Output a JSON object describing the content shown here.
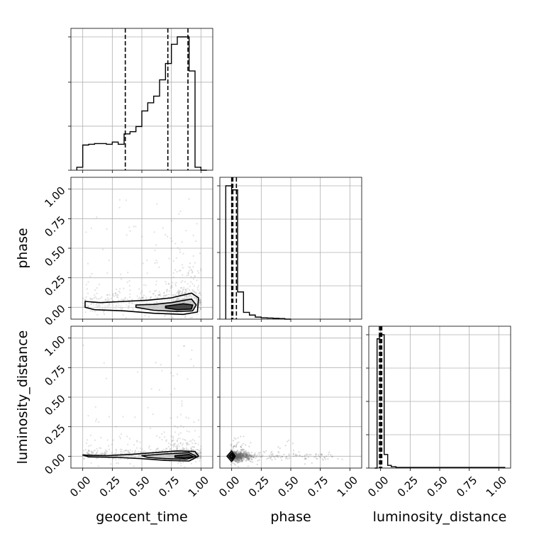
{
  "chart_data": {
    "type": "corner",
    "parameters": [
      "geocent_time",
      "phase",
      "luminosity_distance"
    ],
    "axis_range": [
      -0.1,
      1.1
    ],
    "tick_labels": [
      "0.00",
      "0.25",
      "0.50",
      "0.75",
      "1.00"
    ],
    "tick_values": [
      0,
      0.25,
      0.5,
      0.75,
      1.0
    ],
    "grid": true,
    "line_color": "#000000",
    "histograms": [
      {
        "parameter": "geocent_time",
        "bin_edges": [
          -0.05,
          0.0,
          0.05,
          0.1,
          0.15,
          0.2,
          0.25,
          0.3,
          0.35,
          0.4,
          0.45,
          0.5,
          0.55,
          0.6,
          0.65,
          0.7,
          0.75,
          0.8,
          0.85,
          0.9,
          0.95,
          1.0,
          1.05
        ],
        "counts": [
          0.02,
          0.17,
          0.175,
          0.18,
          0.18,
          0.175,
          0.19,
          0.175,
          0.245,
          0.26,
          0.295,
          0.4,
          0.455,
          0.5,
          0.61,
          0.72,
          0.85,
          0.9,
          0.9,
          0.67,
          0.02,
          0.0
        ],
        "quantiles": [
          0.36,
          0.72,
          0.89
        ],
        "ytick_values": [
          0,
          0.33,
          0.66,
          1.0
        ]
      },
      {
        "parameter": "phase",
        "bin_edges": [
          -0.05,
          0.0,
          0.05,
          0.1,
          0.15,
          0.2,
          0.25,
          0.3,
          0.35,
          0.4,
          0.45,
          0.5
        ],
        "counts": [
          0.98,
          0.95,
          0.2,
          0.05,
          0.03,
          0.015,
          0.01,
          0.008,
          0.006,
          0.004,
          0.0
        ],
        "quantiles": [
          0.0,
          0.01,
          0.04
        ],
        "ytick_values": [
          0,
          0.25,
          0.5,
          0.75,
          1.0
        ]
      },
      {
        "parameter": "luminosity_distance",
        "bin_edges": [
          -0.05,
          -0.03,
          -0.01,
          0.01,
          0.03,
          0.06,
          0.09,
          0.13,
          1.05
        ],
        "counts": [
          0.0,
          0.95,
          0.98,
          0.98,
          0.1,
          0.02,
          0.01,
          0.005
        ],
        "quantiles": [
          -0.01,
          0.0,
          0.01
        ],
        "ytick_values": [
          0,
          0.25,
          0.5,
          0.75,
          1.0
        ]
      }
    ],
    "scatter_panels": [
      {
        "x": "geocent_time",
        "y": "phase",
        "point_color": "#888888",
        "cloud": {
          "x_range": [
            0.0,
            1.0
          ],
          "y_center": 0.01,
          "y_spread": 0.09,
          "dense_x": 0.85
        },
        "contours": [
          {
            "level": "outer",
            "points": [
              [
                0.02,
                0.05
              ],
              [
                0.15,
                0.04
              ],
              [
                0.35,
                0.05
              ],
              [
                0.55,
                0.06
              ],
              [
                0.75,
                0.08
              ],
              [
                0.92,
                0.12
              ],
              [
                0.98,
                0.08
              ],
              [
                0.97,
                -0.04
              ],
              [
                0.85,
                -0.06
              ],
              [
                0.6,
                -0.05
              ],
              [
                0.35,
                -0.03
              ],
              [
                0.1,
                -0.02
              ],
              [
                0.02,
                0.0
              ]
            ]
          },
          {
            "level": "middle",
            "points": [
              [
                0.45,
                0.02
              ],
              [
                0.6,
                0.025
              ],
              [
                0.75,
                0.04
              ],
              [
                0.92,
                0.07
              ],
              [
                0.96,
                0.02
              ],
              [
                0.93,
                -0.03
              ],
              [
                0.8,
                -0.035
              ],
              [
                0.6,
                -0.025
              ],
              [
                0.45,
                0.0
              ]
            ]
          },
          {
            "level": "inner",
            "points": [
              [
                0.7,
                0.01
              ],
              [
                0.85,
                0.03
              ],
              [
                0.93,
                0.02
              ],
              [
                0.92,
                -0.015
              ],
              [
                0.8,
                -0.02
              ],
              [
                0.7,
                -0.005
              ]
            ]
          }
        ]
      },
      {
        "x": "geocent_time",
        "y": "luminosity_distance",
        "point_color": "#888888",
        "cloud": {
          "x_range": [
            0.0,
            1.0
          ],
          "y_center": 0.0,
          "y_spread": 0.04,
          "dense_x": 0.85
        },
        "contours": [
          {
            "level": "outer",
            "points": [
              [
                0.0,
                0.01
              ],
              [
                0.2,
                0.005
              ],
              [
                0.4,
                0.015
              ],
              [
                0.6,
                0.03
              ],
              [
                0.8,
                0.045
              ],
              [
                0.95,
                0.04
              ],
              [
                0.98,
                0.0
              ],
              [
                0.9,
                -0.04
              ],
              [
                0.7,
                -0.035
              ],
              [
                0.5,
                -0.02
              ],
              [
                0.3,
                -0.01
              ],
              [
                0.05,
                -0.005
              ]
            ]
          },
          {
            "level": "middle",
            "points": [
              [
                0.5,
                0.005
              ],
              [
                0.7,
                0.02
              ],
              [
                0.9,
                0.03
              ],
              [
                0.96,
                0.0
              ],
              [
                0.88,
                -0.025
              ],
              [
                0.7,
                -0.02
              ],
              [
                0.55,
                -0.01
              ]
            ]
          },
          {
            "level": "inner",
            "points": [
              [
                0.78,
                0.005
              ],
              [
                0.9,
                0.015
              ],
              [
                0.94,
                -0.005
              ],
              [
                0.86,
                -0.015
              ],
              [
                0.78,
                -0.008
              ]
            ]
          }
        ]
      },
      {
        "x": "phase",
        "y": "luminosity_distance",
        "point_color": "#666666",
        "cloud": {
          "x_range": [
            0.0,
            1.0
          ],
          "y_center": 0.0,
          "y_spread": 0.03,
          "dense_x": 0.0
        },
        "contours": [
          {
            "level": "outer",
            "points": [
              [
                -0.04,
                0.0
              ],
              [
                0.0,
                0.045
              ],
              [
                0.03,
                0.0
              ],
              [
                0.0,
                -0.045
              ]
            ]
          },
          {
            "level": "middle",
            "points": [
              [
                -0.025,
                0.0
              ],
              [
                0.0,
                0.028
              ],
              [
                0.02,
                0.0
              ],
              [
                0.0,
                -0.028
              ]
            ]
          },
          {
            "level": "inner",
            "points": [
              [
                -0.012,
                0.0
              ],
              [
                0.0,
                0.014
              ],
              [
                0.01,
                0.0
              ],
              [
                0.0,
                -0.014
              ]
            ]
          }
        ]
      }
    ]
  }
}
